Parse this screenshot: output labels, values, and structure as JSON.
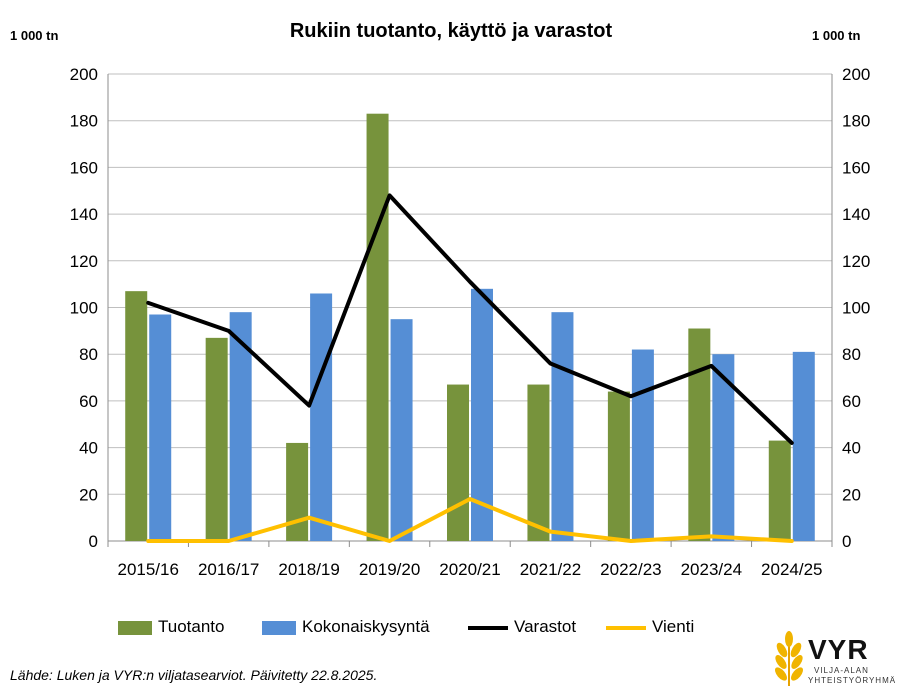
{
  "title": "Rukiin tuotanto, käyttö ja varastot",
  "unit_left": "1 000 tn",
  "unit_right": "1 000 tn",
  "source": "Lähde: Luken ja VYR:n viljatasearviot. Päivitetty 22.8.2025.",
  "logo": {
    "text": "VYR",
    "sub1": "VILJA-ALAN",
    "sub2": "YHTEISTYÖRYHMÄ"
  },
  "colors": {
    "Tuotanto": "#77933c",
    "Kokonaiskysyntä": "#558ed5",
    "Varastot": "#000000",
    "Vienti": "#ffc000"
  },
  "chart_data": {
    "type": "bar",
    "categories": [
      "2015/16",
      "2016/17",
      "2018/19",
      "2019/20",
      "2020/21",
      "2021/22",
      "2022/23",
      "2023/24",
      "2024/25"
    ],
    "series": [
      {
        "name": "Tuotanto",
        "kind": "bar",
        "values": [
          107,
          87,
          42,
          183,
          67,
          67,
          64,
          91,
          43
        ]
      },
      {
        "name": "Kokonaiskysyntä",
        "kind": "bar",
        "values": [
          97,
          98,
          106,
          95,
          108,
          98,
          82,
          80,
          81
        ]
      },
      {
        "name": "Varastot",
        "kind": "line",
        "values": [
          102,
          90,
          58,
          148,
          111,
          76,
          62,
          75,
          42
        ]
      },
      {
        "name": "Vienti",
        "kind": "line",
        "values": [
          0,
          0,
          10,
          0,
          18,
          4,
          0,
          2,
          0
        ]
      }
    ],
    "ylim": [
      0,
      200
    ],
    "yticks": [
      "0",
      "20",
      "40",
      "60",
      "80",
      "100",
      "120",
      "140",
      "160",
      "180",
      "200"
    ],
    "grid": true,
    "legend": "bottom"
  }
}
